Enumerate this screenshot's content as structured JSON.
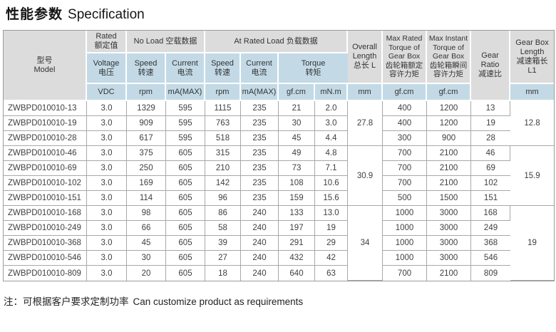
{
  "page": {
    "title_cn": "性能参数",
    "title_en": "Specification",
    "note_cn": "注：可根据客户要求定制功率",
    "note_en": "Can customize product as requirements"
  },
  "colors": {
    "header_gray": "#dcdcdc",
    "header_blue": "#c3dae6",
    "border_gray": "#a8a8a8"
  },
  "table": {
    "header": {
      "model": "型号\nModel",
      "rated": "Rated\n额定值",
      "no_load": "No Load 空载数据",
      "at_rated_load": "At Rated Load 负载数据",
      "voltage": "Voltage\n电压",
      "speed": "Speed\n转速",
      "current": "Current\n电流",
      "torque": "Torque\n转矩",
      "overall_length": "Overall\nLength\n总长 L",
      "max_rated_torque": "Max Rated\nTorque of\nGear Box\n齿轮箱额定\n容许力矩",
      "max_instant_torque": "Max Instant\nTorque of\nGear Box\n齿轮箱瞬间\n容许力矩",
      "gear_ratio": "Gear Ratio\n减速比",
      "gear_box_length": "Gear Box\nLength\n减速箱长\nL1",
      "units": {
        "vdc": "VDC",
        "rpm": "rpm",
        "ma_max": "mA(MAX)",
        "gf_cm": "gf.cm",
        "mn_m": "mN.m",
        "mm": "mm"
      }
    },
    "rows": [
      [
        "ZWBPD010010-13",
        "3.0",
        "1329",
        "595",
        "1115",
        "235",
        "21",
        "2.0",
        "400",
        "1200",
        "13"
      ],
      [
        "ZWBPD010010-19",
        "3.0",
        "909",
        "595",
        "763",
        "235",
        "30",
        "3.0",
        "400",
        "1200",
        "19"
      ],
      [
        "ZWBPD010010-28",
        "3.0",
        "617",
        "595",
        "518",
        "235",
        "45",
        "4.4",
        "300",
        "900",
        "28"
      ],
      [
        "ZWBPD010010-46",
        "3.0",
        "375",
        "605",
        "315",
        "235",
        "49",
        "4.8",
        "700",
        "2100",
        "46"
      ],
      [
        "ZWBPD010010-69",
        "3.0",
        "250",
        "605",
        "210",
        "235",
        "73",
        "7.1",
        "700",
        "2100",
        "69"
      ],
      [
        "ZWBPD010010-102",
        "3.0",
        "169",
        "605",
        "142",
        "235",
        "108",
        "10.6",
        "700",
        "2100",
        "102"
      ],
      [
        "ZWBPD010010-151",
        "3.0",
        "114",
        "605",
        "96",
        "235",
        "159",
        "15.6",
        "500",
        "1500",
        "151"
      ],
      [
        "ZWBPD010010-168",
        "3.0",
        "98",
        "605",
        "86",
        "240",
        "133",
        "13.0",
        "1000",
        "3000",
        "168"
      ],
      [
        "ZWBPD010010-249",
        "3.0",
        "66",
        "605",
        "58",
        "240",
        "197",
        "19",
        "1000",
        "3000",
        "249"
      ],
      [
        "ZWBPD010010-368",
        "3.0",
        "45",
        "605",
        "39",
        "240",
        "291",
        "29",
        "1000",
        "3000",
        "368"
      ],
      [
        "ZWBPD010010-546",
        "3.0",
        "30",
        "605",
        "27",
        "240",
        "432",
        "42",
        "1000",
        "3000",
        "546"
      ],
      [
        "ZWBPD010010-809",
        "3.0",
        "20",
        "605",
        "18",
        "240",
        "640",
        "63",
        "700",
        "2100",
        "809"
      ]
    ],
    "groups": [
      {
        "rows": 3,
        "overall_length": "27.8",
        "gear_box_length": "12.8"
      },
      {
        "rows": 4,
        "overall_length": "30.9",
        "gear_box_length": "15.9"
      },
      {
        "rows": 5,
        "overall_length": "34",
        "gear_box_length": "19"
      }
    ]
  }
}
